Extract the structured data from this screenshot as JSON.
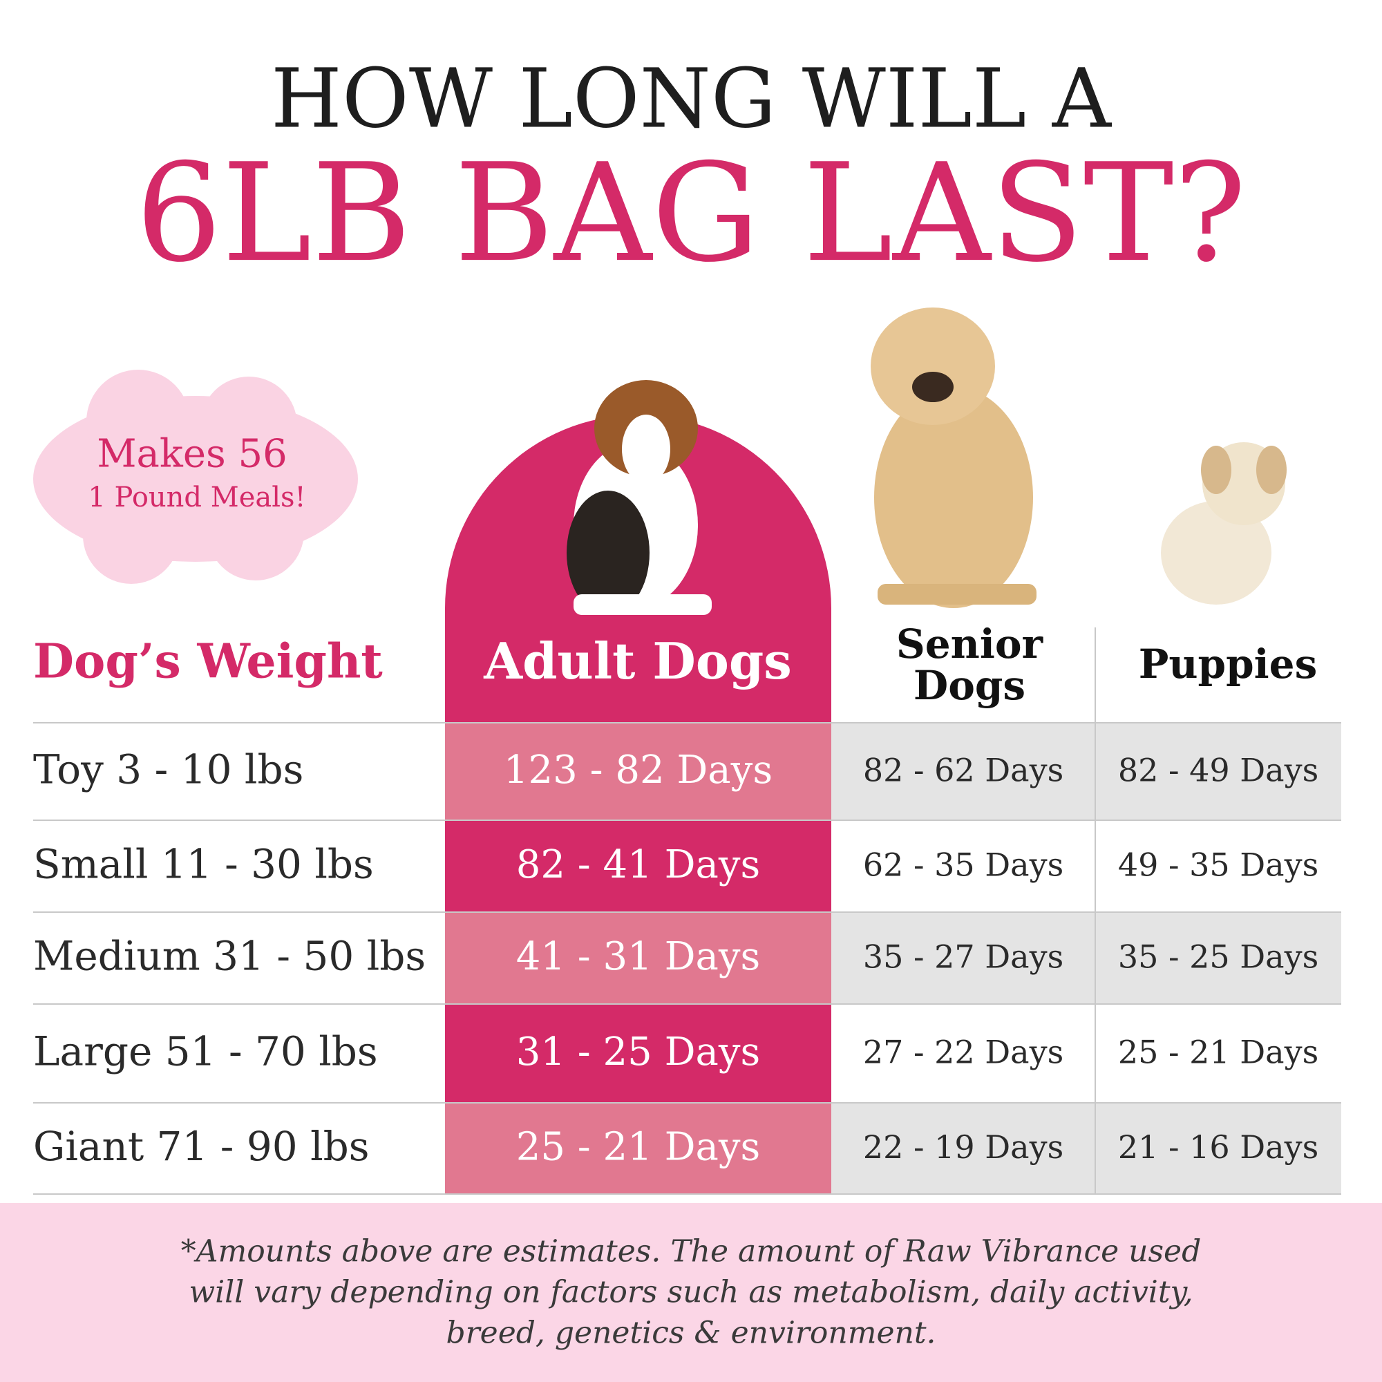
{
  "header": {
    "line1": "HOW LONG WILL A",
    "line2": "6LB BAG LAST?"
  },
  "badge": {
    "line1": "Makes 56",
    "line2": "1 Pound Meals!"
  },
  "table": {
    "columns": [
      "Dog’s Weight",
      "Adult Dogs",
      "Senior Dogs",
      "Puppies"
    ],
    "rows": [
      [
        "Toy 3 - 10 lbs",
        "123 - 82 Days",
        "82 - 62 Days",
        "82 - 49 Days"
      ],
      [
        "Small 11 - 30 lbs",
        "82 - 41 Days",
        "62 - 35 Days",
        "49 - 35 Days"
      ],
      [
        "Medium 31 - 50 lbs",
        "41 - 31 Days",
        "35 - 27 Days",
        "35 - 25 Days"
      ],
      [
        "Large 51 - 70 lbs",
        "31 - 25 Days",
        "27 - 22 Days",
        "25 - 21 Days"
      ],
      [
        "Giant 71 - 90 lbs",
        "25 - 21 Days",
        "22 - 19 Days",
        "21 - 16 Days"
      ]
    ]
  },
  "footnote": [
    "*Amounts above are estimates. The amount of Raw Vibrance used",
    "will vary depending on factors such as metabolism, daily activity,",
    "breed, genetics & environment."
  ]
}
